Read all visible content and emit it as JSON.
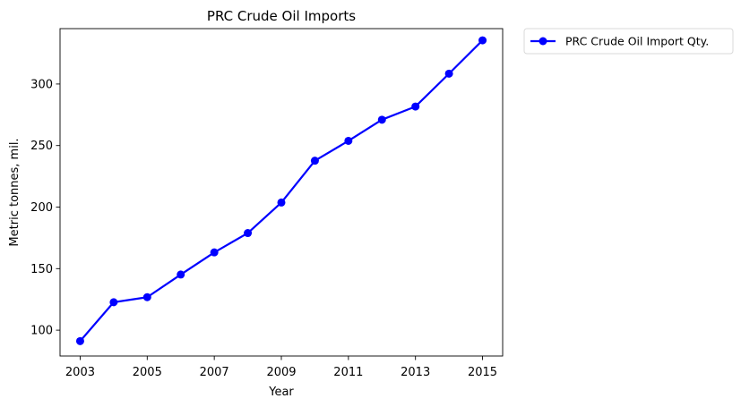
{
  "chart_data": {
    "type": "line",
    "title": "PRC Crude Oil Imports",
    "xlabel": "Year",
    "ylabel": "Metric tonnes, mil.",
    "x": [
      2003,
      2004,
      2005,
      2006,
      2007,
      2008,
      2009,
      2010,
      2011,
      2012,
      2013,
      2014,
      2015
    ],
    "xlim": [
      2002.4,
      2015.6
    ],
    "ylim": [
      79,
      345
    ],
    "xticks": [
      2003,
      2005,
      2007,
      2009,
      2011,
      2013,
      2015
    ],
    "yticks": [
      100,
      150,
      200,
      250,
      300
    ],
    "grid": false,
    "legend_position": "outside-top-right",
    "series": [
      {
        "name": "PRC Crude Oil Import Qty.",
        "color": "#0000ff",
        "marker": "circle",
        "values": [
          91.1,
          122.7,
          126.8,
          145.2,
          163.2,
          178.9,
          203.7,
          237.7,
          253.8,
          271.0,
          281.7,
          308.4,
          335.5
        ]
      }
    ]
  }
}
